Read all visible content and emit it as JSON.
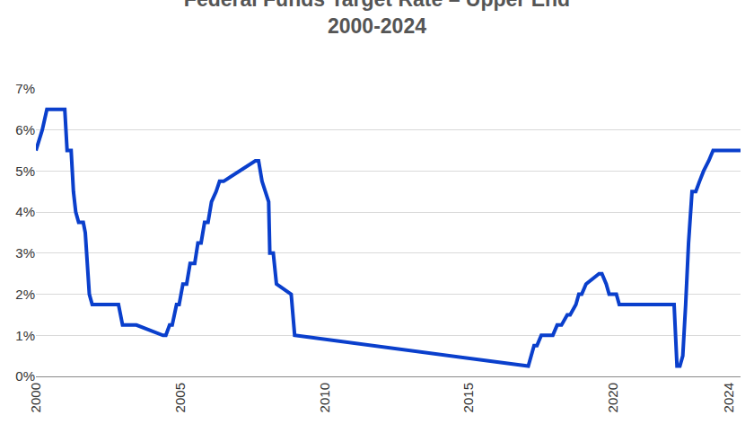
{
  "chart_data": {
    "type": "line",
    "title": "Federal Funds Target Rate – Upper End",
    "subtitle": "2000-2024",
    "color": "#0a3fcc",
    "grid": true,
    "x": [
      2000.0,
      2000.1,
      2000.22,
      2000.38,
      2001.0,
      2001.08,
      2001.22,
      2001.3,
      2001.38,
      2001.48,
      2001.64,
      2001.71,
      2001.76,
      2001.85,
      2001.95,
      2002.86,
      2003.0,
      2003.48,
      2004.4,
      2004.5,
      2004.63,
      2004.72,
      2004.87,
      2004.96,
      2005.09,
      2005.22,
      2005.34,
      2005.5,
      2005.61,
      2005.72,
      2005.84,
      2005.96,
      2006.08,
      2006.24,
      2006.36,
      2006.5,
      2007.6,
      2007.71,
      2007.83,
      2007.95,
      2008.06,
      2008.1,
      2008.22,
      2008.33,
      2008.8,
      2008.84,
      2008.96,
      2016.9,
      2017.05,
      2017.25,
      2017.35,
      2017.5,
      2017.9,
      2018.05,
      2018.2,
      2018.4,
      2018.5,
      2018.7,
      2018.8,
      2018.9,
      2019.05,
      2019.5,
      2019.6,
      2019.75,
      2019.85,
      2020.1,
      2020.2,
      2022.1,
      2022.2,
      2022.3,
      2022.4,
      2022.5,
      2022.6,
      2022.72,
      2022.85,
      2022.98,
      2023.12,
      2023.3,
      2023.45,
      2023.6,
      2024.4
    ],
    "values": [
      5.5,
      5.75,
      6.0,
      6.5,
      6.5,
      5.5,
      5.5,
      4.5,
      4.0,
      3.75,
      3.75,
      3.5,
      3.0,
      2.0,
      1.75,
      1.75,
      1.25,
      1.25,
      1.0,
      1.0,
      1.25,
      1.25,
      1.75,
      1.75,
      2.25,
      2.25,
      2.75,
      2.75,
      3.25,
      3.25,
      3.75,
      3.75,
      4.25,
      4.5,
      4.75,
      4.75,
      5.25,
      5.25,
      4.75,
      4.5,
      4.25,
      3.0,
      3.0,
      2.25,
      2.0,
      2.0,
      1.0,
      0.25,
      0.25,
      0.75,
      0.75,
      1.0,
      1.0,
      1.25,
      1.25,
      1.5,
      1.5,
      1.75,
      2.0,
      2.0,
      2.25,
      2.5,
      2.5,
      2.25,
      2.0,
      2.0,
      1.75,
      1.75,
      0.25,
      0.25,
      0.5,
      1.75,
      3.25,
      4.5,
      4.5,
      4.75,
      5.0,
      5.25,
      5.5,
      5.5,
      5.5
    ],
    "xlim": [
      2000,
      2024.4
    ],
    "xticks": [
      2000,
      2005,
      2010,
      2015,
      2020,
      2024
    ],
    "ylim": [
      0,
      7
    ],
    "yticks": [
      {
        "value": 0,
        "label": "0%"
      },
      {
        "value": 1,
        "label": "1%"
      },
      {
        "value": 2,
        "label": "2%"
      },
      {
        "value": 3,
        "label": "3%"
      },
      {
        "value": 4,
        "label": "4%"
      },
      {
        "value": 5,
        "label": "5%"
      },
      {
        "value": 6,
        "label": "6%"
      },
      {
        "value": 7,
        "label": "7%"
      }
    ]
  }
}
